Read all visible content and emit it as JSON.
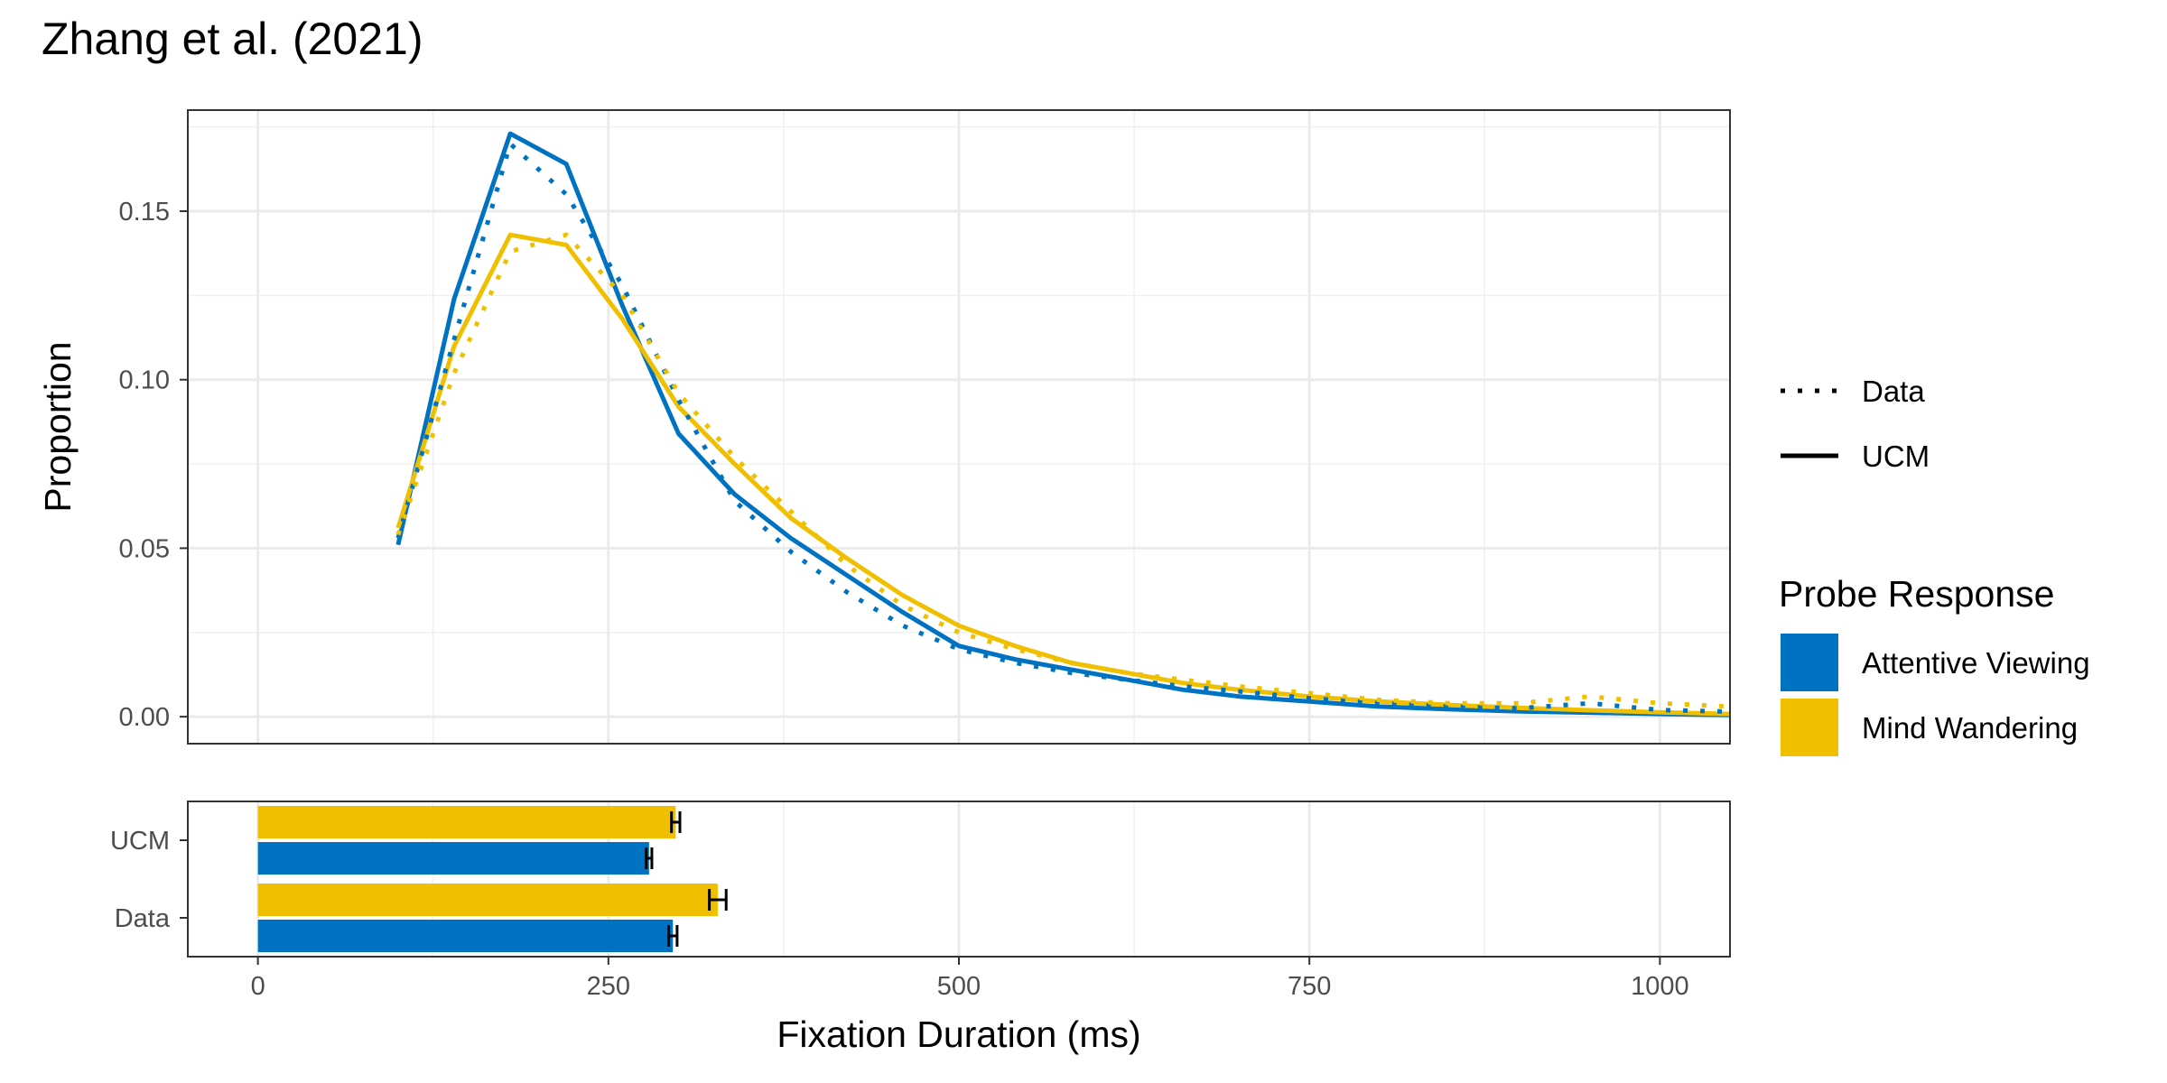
{
  "chart_data": {
    "title": "Zhang et al. (2021)",
    "xlabel": "Fixation Duration (ms)",
    "xlim": [
      -50,
      1050
    ],
    "xticks": [
      0,
      250,
      500,
      750,
      1000
    ],
    "xtick_labels": [
      "0",
      "250",
      "500",
      "750",
      "1000"
    ],
    "grid": true,
    "colors": {
      "Attentive Viewing": "#0072C2",
      "Mind Wandering": "#F0C000"
    },
    "panels": [
      {
        "type": "line",
        "ylabel": "Proportion",
        "ylim": [
          -0.008,
          0.18
        ],
        "yticks": [
          0.0,
          0.05,
          0.1,
          0.15
        ],
        "ytick_labels": [
          "0.00",
          "0.05",
          "0.10",
          "0.15"
        ],
        "series": [
          {
            "group": "Attentive Viewing",
            "source": "UCM",
            "x": [
              100,
              140,
              180,
              220,
              260,
              300,
              340,
              380,
              420,
              460,
              500,
              540,
              580,
              620,
              660,
              700,
              750,
              800,
              850,
              900,
              950,
              1000,
              1050
            ],
            "y": [
              0.051,
              0.124,
              0.173,
              0.164,
              0.122,
              0.084,
              0.066,
              0.053,
              0.042,
              0.031,
              0.021,
              0.017,
              0.014,
              0.011,
              0.008,
              0.006,
              0.0045,
              0.003,
              0.0022,
              0.0016,
              0.0012,
              0.0008,
              0.0005
            ]
          },
          {
            "group": "Mind Wandering",
            "source": "UCM",
            "x": [
              100,
              140,
              180,
              220,
              260,
              300,
              340,
              380,
              420,
              460,
              500,
              540,
              580,
              620,
              660,
              700,
              750,
              800,
              850,
              900,
              950,
              1000,
              1050
            ],
            "y": [
              0.056,
              0.11,
              0.143,
              0.14,
              0.118,
              0.092,
              0.075,
              0.059,
              0.047,
              0.036,
              0.027,
              0.021,
              0.016,
              0.013,
              0.01,
              0.008,
              0.006,
              0.0045,
              0.0035,
              0.0026,
              0.0019,
              0.0013,
              0.0008
            ]
          },
          {
            "group": "Attentive Viewing",
            "source": "Data",
            "x": [
              100,
              140,
              180,
              220,
              260,
              300,
              340,
              380,
              420,
              460,
              500,
              540,
              580,
              620,
              660,
              700,
              750,
              800,
              850,
              900,
              950,
              1000,
              1050
            ],
            "y": [
              0.053,
              0.112,
              0.17,
              0.155,
              0.128,
              0.094,
              0.064,
              0.049,
              0.037,
              0.027,
              0.02,
              0.016,
              0.013,
              0.011,
              0.009,
              0.0075,
              0.0055,
              0.004,
              0.003,
              0.0025,
              0.004,
              0.002,
              0.0015
            ]
          },
          {
            "group": "Mind Wandering",
            "source": "Data",
            "x": [
              100,
              140,
              180,
              220,
              260,
              300,
              340,
              380,
              420,
              460,
              500,
              540,
              580,
              620,
              660,
              700,
              750,
              800,
              850,
              900,
              950,
              1000,
              1050
            ],
            "y": [
              0.054,
              0.102,
              0.138,
              0.143,
              0.125,
              0.096,
              0.077,
              0.061,
              0.045,
              0.033,
              0.025,
              0.02,
              0.016,
              0.013,
              0.011,
              0.009,
              0.007,
              0.005,
              0.004,
              0.004,
              0.006,
              0.004,
              0.003
            ]
          }
        ]
      },
      {
        "type": "bar",
        "orientation": "horizontal",
        "categories": [
          "UCM",
          "Data"
        ],
        "bars": [
          {
            "category": "UCM",
            "group": "Mind Wandering",
            "value": 298,
            "error": 3
          },
          {
            "category": "UCM",
            "group": "Attentive Viewing",
            "value": 279,
            "error": 2
          },
          {
            "category": "Data",
            "group": "Mind Wandering",
            "value": 328,
            "error": 6
          },
          {
            "category": "Data",
            "group": "Attentive Viewing",
            "value": 296,
            "error": 3
          }
        ]
      }
    ],
    "legend": {
      "placement": "right",
      "linetype_entries": [
        {
          "label": "Data",
          "style": "dotted"
        },
        {
          "label": "UCM",
          "style": "solid"
        }
      ],
      "color_title": "Probe Response",
      "color_entries": [
        {
          "label": "Attentive Viewing",
          "color": "#0072C2"
        },
        {
          "label": "Mind Wandering",
          "color": "#F0C000"
        }
      ]
    }
  }
}
